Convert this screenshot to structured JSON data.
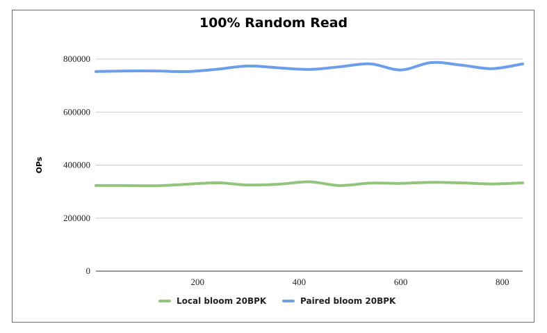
{
  "chart_data": {
    "type": "line",
    "title": "100% Random Read",
    "xlabel": "",
    "ylabel": "OPs",
    "xlim": [
      0,
      840
    ],
    "ylim": [
      0,
      800000
    ],
    "x_ticks": [
      200,
      400,
      600,
      800
    ],
    "y_ticks": [
      0,
      200000,
      400000,
      600000,
      800000
    ],
    "grid": "horizontal",
    "legend_position": "bottom",
    "series": [
      {
        "name": "Local bloom 20BPK",
        "color": "#93c47d",
        "x": [
          0,
          60,
          120,
          180,
          240,
          300,
          360,
          420,
          480,
          540,
          600,
          660,
          720,
          780,
          840
        ],
        "y": [
          323000,
          323000,
          322000,
          328000,
          333000,
          325000,
          328000,
          337000,
          323000,
          332000,
          331000,
          335000,
          333000,
          329000,
          333000
        ]
      },
      {
        "name": "Paired bloom 20BPK",
        "color": "#6d9eeb",
        "x": [
          0,
          60,
          120,
          180,
          240,
          300,
          360,
          420,
          480,
          540,
          600,
          660,
          720,
          780,
          840
        ],
        "y": [
          753000,
          755000,
          755000,
          753000,
          762000,
          774000,
          767000,
          761000,
          771000,
          782000,
          759000,
          787000,
          777000,
          764000,
          782000
        ]
      }
    ]
  }
}
